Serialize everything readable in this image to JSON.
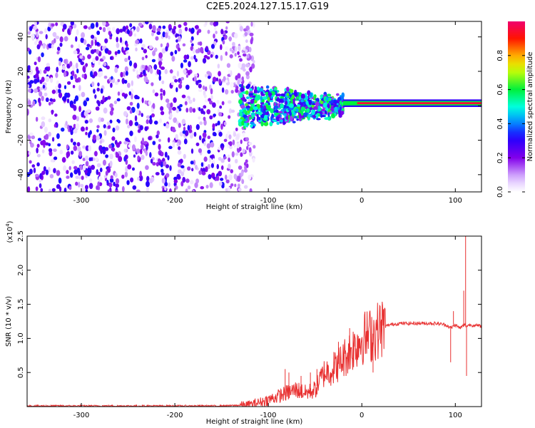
{
  "title": "C2E5.2024.127.15.17.G19",
  "chart_data": [
    {
      "type": "heatmap",
      "xlabel": "Height of straight line (km)",
      "ylabel": "Frequency (Hz)",
      "xlim": [
        -358,
        128
      ],
      "ylim": [
        -50,
        49
      ],
      "xticks": [
        -300,
        -200,
        -100,
        0,
        100
      ],
      "yticks": [
        -40,
        -20,
        0,
        20,
        40
      ],
      "colorbar": {
        "label": "Normalized spectral amplitude",
        "range": [
          0.0,
          1.0
        ],
        "ticks": [
          0.0,
          0.2,
          0.4,
          0.6,
          0.8
        ]
      },
      "structure": [
        {
          "region": "noise",
          "x_range": [
            -358,
            -130
          ],
          "freq_range": [
            -50,
            49
          ],
          "amplitude": 0.15
        },
        {
          "region": "turbulent",
          "x_range": [
            -130,
            -20
          ],
          "freq_range": [
            -13,
            12
          ],
          "amplitude": 0.35
        },
        {
          "region": "steady_carrier",
          "x_range": [
            -20,
            128
          ],
          "freq_center": 1.5,
          "amplitude": 0.95
        }
      ]
    },
    {
      "type": "line",
      "xlabel": "Height of straight line (km)",
      "ylabel": "SNR (10 * v/v)",
      "scale_label": "(x10",
      "scale_exponent": "4",
      "scale_close": ")",
      "xlim": [
        -358,
        128
      ],
      "ylim": [
        0,
        2.5
      ],
      "xticks": [
        -300,
        -200,
        -100,
        0,
        100
      ],
      "yticks": [
        0.5,
        1.0,
        1.5,
        2.0,
        2.5
      ],
      "ytick_labels": [
        "0.5",
        "1.0",
        "1.5",
        "2.0",
        "2.5"
      ],
      "color": "#e83030",
      "series": [
        {
          "x": [
            -358,
            -300,
            -250,
            -200,
            -150,
            -130,
            -120,
            -110,
            -100,
            -90,
            -80,
            -70,
            -60,
            -50,
            -40,
            -30,
            -20,
            -10,
            0,
            10,
            20,
            30,
            40,
            60,
            80,
            90,
            95,
            100,
            105,
            110,
            112,
            115,
            120,
            128
          ],
          "y": [
            0.01,
            0.01,
            0.01,
            0.01,
            0.01,
            0.02,
            0.03,
            0.06,
            0.1,
            0.15,
            0.2,
            0.25,
            0.2,
            0.25,
            0.5,
            0.55,
            0.7,
            0.85,
            1.0,
            1.05,
            1.15,
            1.2,
            1.22,
            1.22,
            1.22,
            1.2,
            1.15,
            1.2,
            1.15,
            1.2,
            1.18,
            1.2,
            1.19,
            1.18
          ]
        }
      ],
      "spikes": [
        {
          "x": -82,
          "y": 0.55
        },
        {
          "x": -78,
          "y": 0.5
        },
        {
          "x": -65,
          "y": 0.45
        },
        {
          "x": -55,
          "y": 0.5
        },
        {
          "x": -48,
          "y": 0.55
        },
        {
          "x": -40,
          "y": 0.55
        },
        {
          "x": -30,
          "y": 0.8
        },
        {
          "x": -25,
          "y": 0.95
        },
        {
          "x": -20,
          "y": 0.9
        },
        {
          "x": -13,
          "y": 1.15
        },
        {
          "x": -8,
          "y": 1.05
        },
        {
          "x": 12,
          "y": 0.5
        },
        {
          "x": 98,
          "y": 1.4
        },
        {
          "x": 95,
          "y": 0.65
        },
        {
          "x": 109,
          "y": 1.7
        },
        {
          "x": 111,
          "y": 2.55
        },
        {
          "x": 112,
          "y": 0.45
        }
      ]
    }
  ]
}
